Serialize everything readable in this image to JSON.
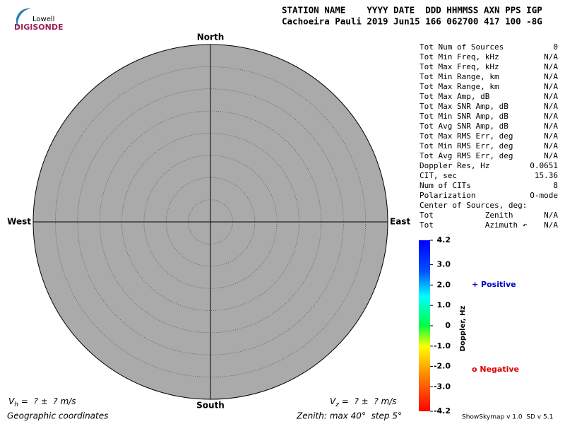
{
  "header": {
    "logo_top": "Lowell",
    "logo_bottom": "DIGISONDE",
    "columns": "STATION NAME    YYYY DATE  DDD HHMMSS AXN PPS IGP",
    "values": "Cachoeira Pauli 2019 Jun15 166 062700 417 100 -8G"
  },
  "skymap": {
    "north": "North",
    "south": "South",
    "east": "East",
    "west": "West"
  },
  "stats": [
    {
      "label": "Tot Num of Sources",
      "value": "0",
      "color": "#aaaaaa"
    },
    {
      "label": "Tot Min Freq, kHz",
      "value": "N/A",
      "color": "#aaaaaa"
    },
    {
      "label": "Tot Max Freq, kHz",
      "value": "N/A",
      "color": "#aaaaaa"
    },
    {
      "label": "Tot Min Range, km",
      "value": "N/A",
      "color": "#aaaaaa"
    },
    {
      "label": "Tot Max Range, km",
      "value": "N/A",
      "color": "#aaaaaa"
    },
    {
      "label": "Tot Max Amp, dB",
      "value": "N/A",
      "color": "#aaaaaa"
    },
    {
      "label": "Tot Max SNR Amp, dB",
      "value": "N/A",
      "color": "#aaaaaa"
    },
    {
      "label": "Tot Min SNR Amp, dB",
      "value": "N/A",
      "color": "#aaaaaa"
    },
    {
      "label": "Tot Avg SNR Amp, dB",
      "value": "N/A",
      "color": "#aaaaaa"
    },
    {
      "label": "Tot Max RMS Err, deg",
      "value": "N/A",
      "color": "#aaaaaa"
    },
    {
      "label": "Tot Min RMS Err, deg",
      "value": "N/A",
      "color": "#aaaaaa"
    },
    {
      "label": "Tot Avg RMS Err, deg",
      "value": "N/A",
      "color": "#aaaaaa"
    },
    {
      "label": "Doppler Res, Hz",
      "value": "0.0651",
      "color": "#000000"
    },
    {
      "label": "CIT, sec",
      "value": "15.36",
      "color": "#000000"
    },
    {
      "label": "Num of CITs",
      "value": "8",
      "color": "#000000"
    },
    {
      "label": "Polarization",
      "value": "O-mode",
      "color": "#000000"
    },
    {
      "label": "Center of Sources, deg:"
    },
    {
      "label": "Tot           Zenith",
      "value": "N/A",
      "color": "#aaaaaa"
    },
    {
      "label": "Tot           Azimuth ↶",
      "value": "N/A",
      "color": "#aaaaaa"
    }
  ],
  "colorbar": {
    "title": "Doppler, Hz",
    "range": [
      -4.2,
      4.2
    ],
    "ticks": [
      {
        "value": 4.2,
        "label": "4.2"
      },
      {
        "value": 3,
        "label": "3.0"
      },
      {
        "value": 2,
        "label": "2.0"
      },
      {
        "value": 1,
        "label": "1.0"
      },
      0,
      {
        "value": -1,
        "label": "-1.0"
      },
      {
        "value": -2,
        "label": "-2.0"
      },
      {
        "value": -3,
        "label": "-3.0"
      },
      {
        "value": -4.2,
        "label": "-4.2"
      }
    ]
  },
  "legend": {
    "positive": "+ Positive",
    "negative": "o Negative"
  },
  "footer": {
    "vh_symbol": "V",
    "vh_sub": "h",
    "vh_rest": " =  ? ±  ? m/s",
    "vz_symbol": "V",
    "vz_sub": "z",
    "vz_rest": " =  ? ±  ? m/s",
    "coords": "Geographic coordinates",
    "zenith": "Zenith: max 40°  step 5°",
    "version": "ShowSkymap v 1.0  SD v 5.1"
  }
}
